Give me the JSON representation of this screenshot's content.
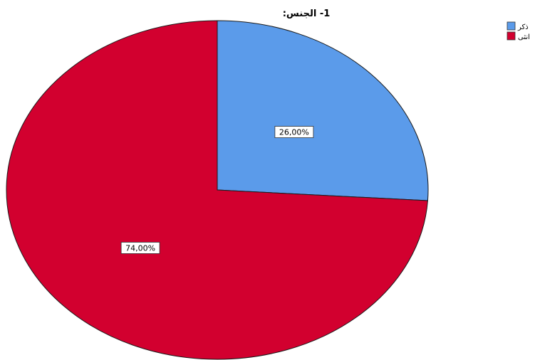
{
  "chart_data": {
    "type": "pie",
    "title": "1- الجنس:",
    "categories": [
      "ذكر",
      "انثى"
    ],
    "values": [
      26.0,
      74.0
    ],
    "data_labels": [
      "26,00%",
      "74,00%"
    ],
    "colors": [
      "#5b9bea",
      "#d2002f"
    ],
    "start_angle": "12 o'clock",
    "direction": "clockwise",
    "legend_position": "top-right"
  }
}
